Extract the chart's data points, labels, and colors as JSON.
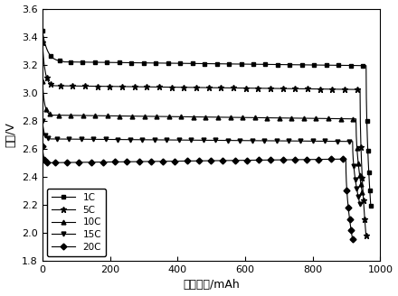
{
  "title": "",
  "xlabel": "放电容量/mAh",
  "ylabel": "电压/V",
  "xlim": [
    0,
    1000
  ],
  "ylim": [
    1.8,
    3.6
  ],
  "xticks": [
    0,
    200,
    400,
    600,
    800,
    1000
  ],
  "yticks": [
    1.8,
    2.0,
    2.2,
    2.4,
    2.6,
    2.8,
    3.0,
    3.2,
    3.4,
    3.6
  ],
  "curves": [
    {
      "label": "1C",
      "marker": "s",
      "markersize": 3.5,
      "start_v": 3.44,
      "drop_x": 60,
      "plateau_v": 3.22,
      "plateau_slope": -3e-05,
      "end_x": 958,
      "end_v": 2.18,
      "capacity_end": 972
    },
    {
      "label": "5C",
      "marker": "*",
      "markersize": 4.5,
      "start_v": 3.36,
      "drop_x": 30,
      "plateau_v": 3.05,
      "plateau_slope": -3e-05,
      "end_x": 940,
      "end_v": 1.97,
      "capacity_end": 958
    },
    {
      "label": "10C",
      "marker": "^",
      "markersize": 3.5,
      "start_v": 3.08,
      "drop_x": 25,
      "plateau_v": 2.84,
      "plateau_slope": -3e-05,
      "end_x": 928,
      "end_v": 2.28,
      "capacity_end": 947
    },
    {
      "label": "15C",
      "marker": "v",
      "markersize": 3.5,
      "start_v": 2.8,
      "drop_x": 20,
      "plateau_v": 2.67,
      "plateau_slope": -2e-05,
      "end_x": 918,
      "end_v": 2.2,
      "capacity_end": 940
    },
    {
      "label": "20C",
      "marker": "D",
      "markersize": 3.5,
      "start_v": 2.62,
      "drop_x": 15,
      "plateau_v": 2.5,
      "plateau_slope": 3e-05,
      "end_x": 898,
      "end_v": 1.95,
      "capacity_end": 918
    }
  ],
  "legend_loc": "lower left",
  "background_color": "#ffffff"
}
